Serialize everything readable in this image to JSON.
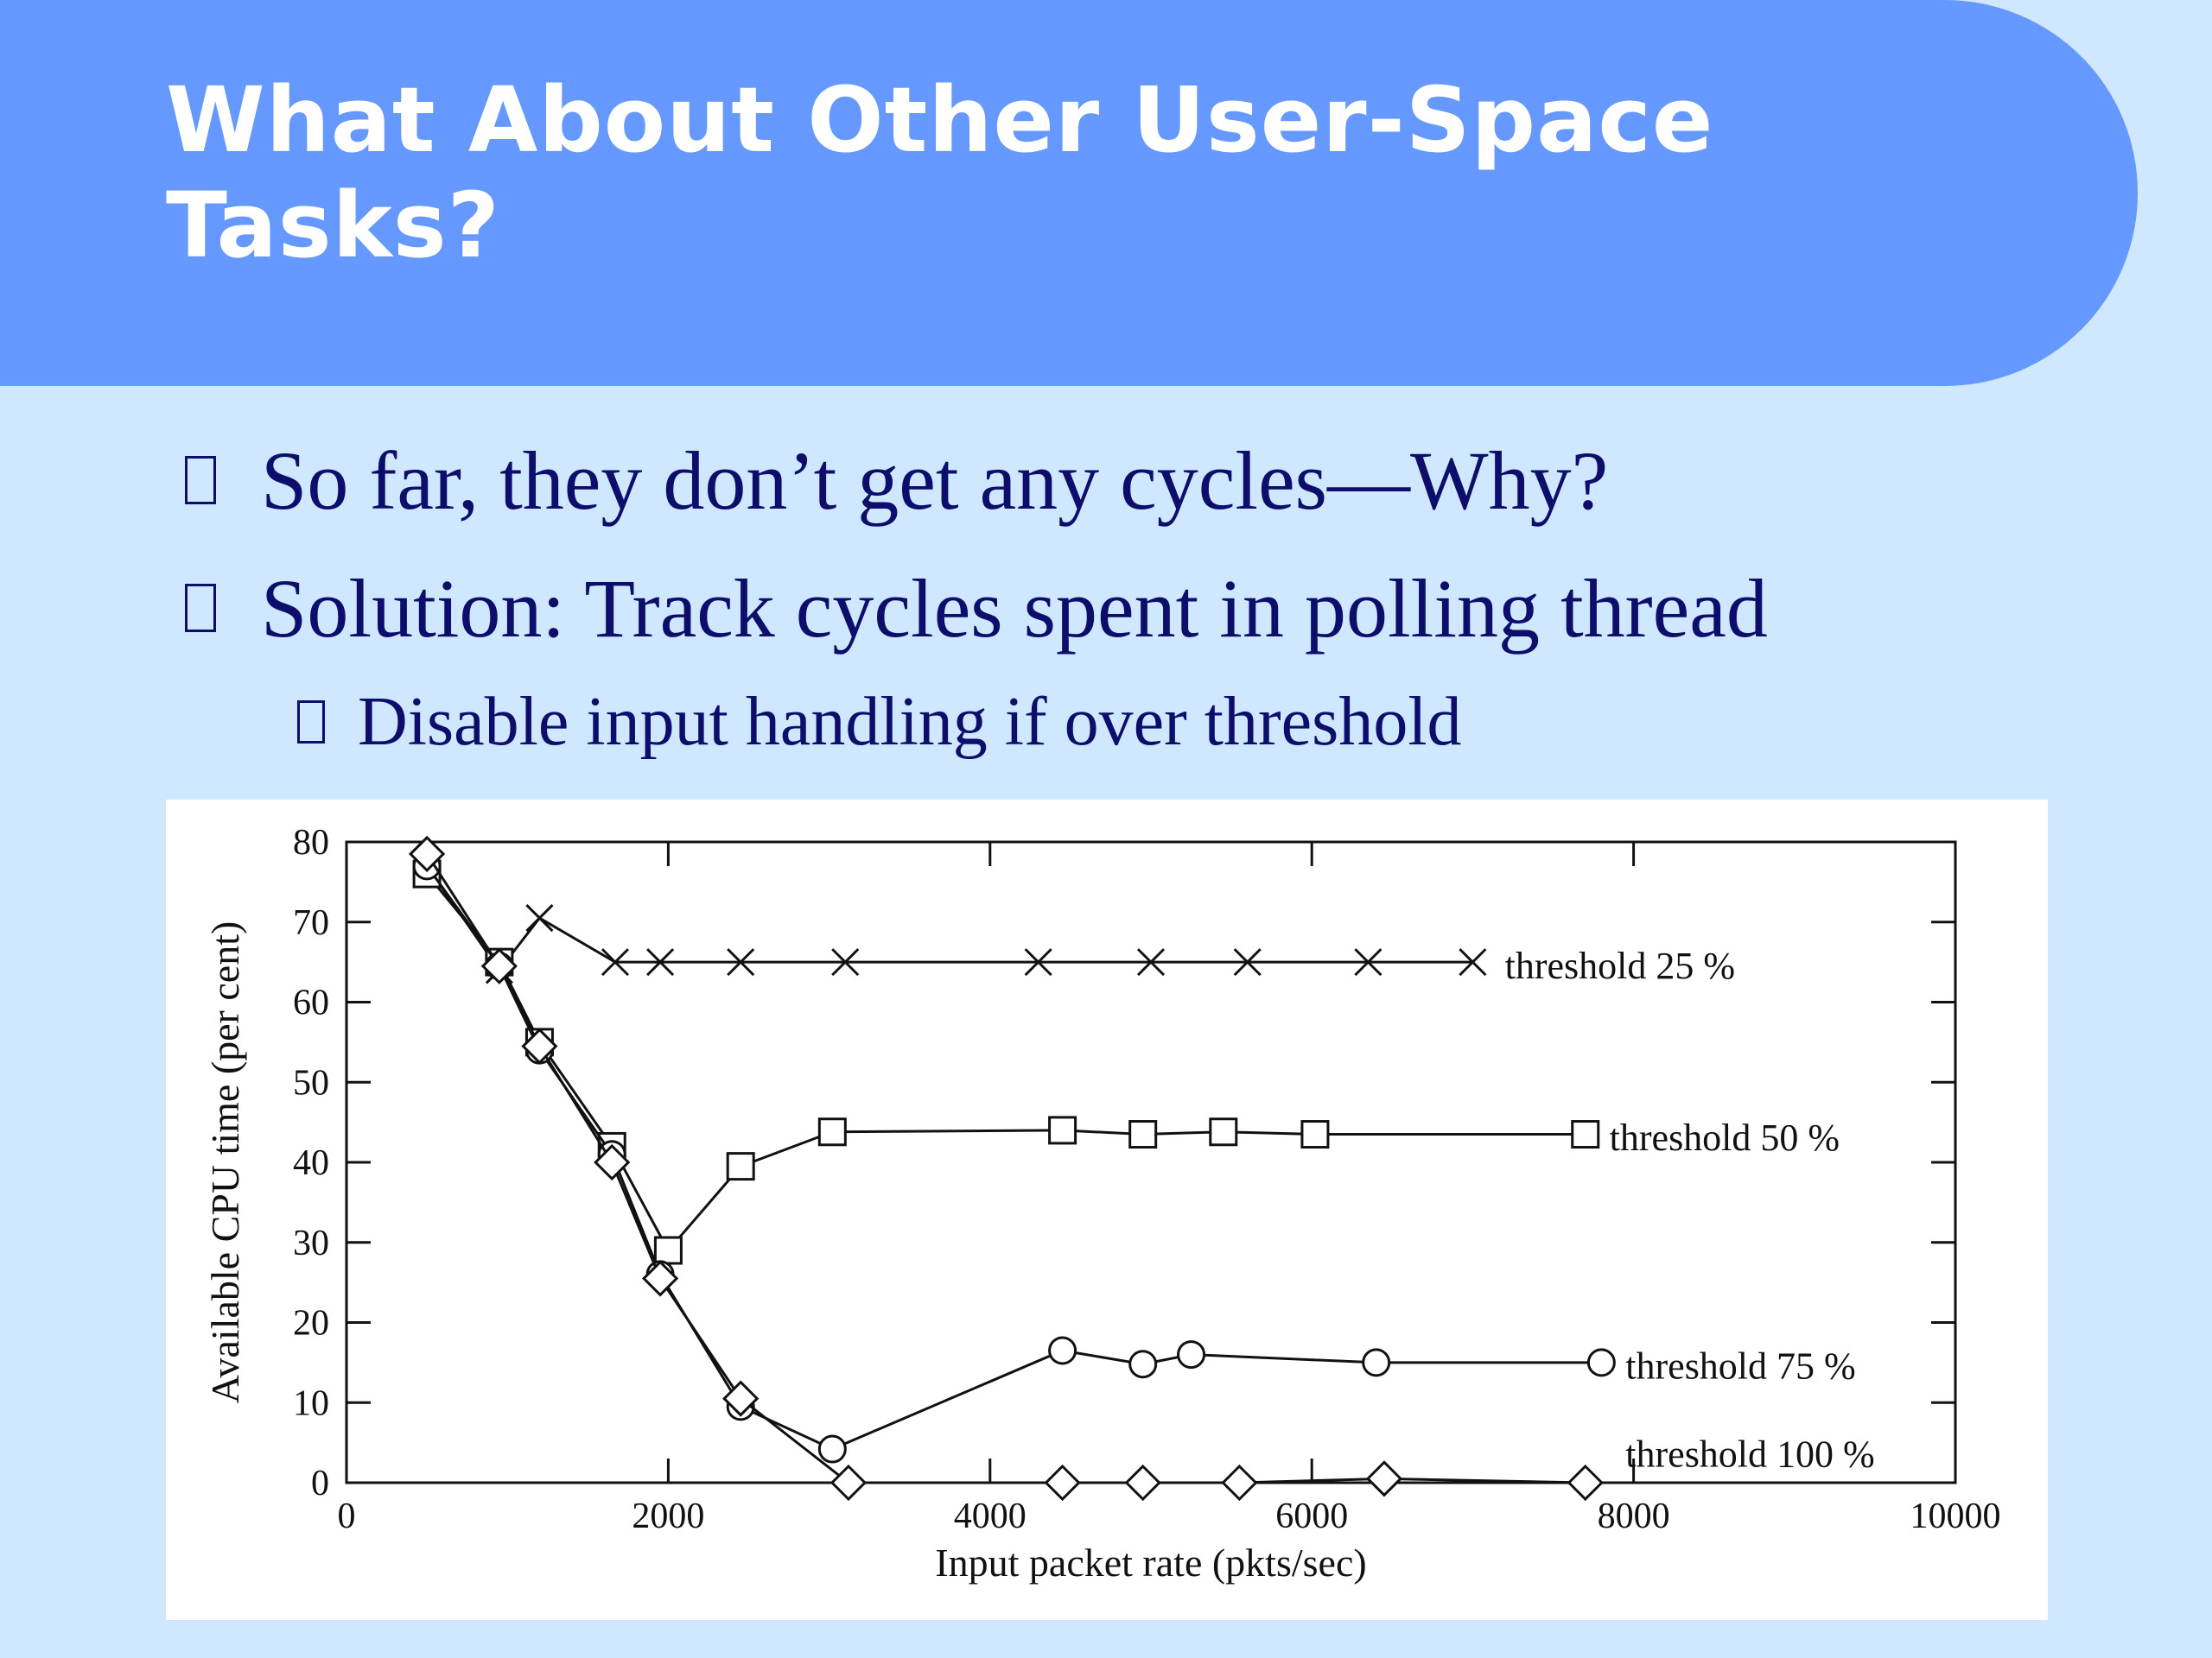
{
  "slide": {
    "title_line1": "What About Other User-Space",
    "title_line2": "Tasks?",
    "bullets": [
      {
        "text": "So far, they don’t get any cycles—Why?",
        "level": 1
      },
      {
        "text": "Solution: Track cycles spent in polling thread",
        "level": 1
      },
      {
        "text": "Disable input handling if over threshold",
        "level": 2
      }
    ],
    "colors": {
      "title_band": "#6699ff",
      "background": "#cfe8ff",
      "title_text": "#ffffff",
      "bullet_text": "#0d0d6b"
    }
  },
  "chart_data": {
    "type": "line",
    "title": "",
    "xlabel": "Input packet rate (pkts/sec)",
    "ylabel": "Available CPU time (per cent)",
    "xlim": [
      0,
      10000
    ],
    "ylim": [
      0,
      80
    ],
    "x_ticks": [
      0,
      2000,
      4000,
      6000,
      8000,
      10000
    ],
    "y_ticks": [
      0,
      10,
      20,
      30,
      40,
      50,
      60,
      70,
      80
    ],
    "grid": false,
    "legend": "inline labels at right end of each series",
    "series": [
      {
        "name": "threshold 25 %",
        "marker": "x",
        "points": [
          [
            500,
            77
          ],
          [
            950,
            64
          ],
          [
            1200,
            70.5
          ],
          [
            1670,
            65
          ],
          [
            1950,
            65
          ],
          [
            2450,
            65
          ],
          [
            3100,
            65
          ],
          [
            4300,
            65
          ],
          [
            5000,
            65
          ],
          [
            5600,
            65
          ],
          [
            6350,
            65
          ],
          [
            7000,
            65
          ]
        ]
      },
      {
        "name": "threshold 50 %",
        "marker": "square",
        "points": [
          [
            500,
            76
          ],
          [
            950,
            65
          ],
          [
            1200,
            55
          ],
          [
            1650,
            42
          ],
          [
            2000,
            29
          ],
          [
            2450,
            39.5
          ],
          [
            3020,
            43.8
          ],
          [
            4450,
            44
          ],
          [
            4950,
            43.5
          ],
          [
            5450,
            43.8
          ],
          [
            6020,
            43.5
          ],
          [
            7700,
            43.5
          ]
        ]
      },
      {
        "name": "threshold 75 %",
        "marker": "circle",
        "points": [
          [
            500,
            77
          ],
          [
            950,
            64.5
          ],
          [
            1200,
            54
          ],
          [
            1650,
            41
          ],
          [
            1950,
            26
          ],
          [
            2450,
            9.5
          ],
          [
            3020,
            4.2
          ],
          [
            4450,
            16.5
          ],
          [
            4950,
            14.8
          ],
          [
            5250,
            16
          ],
          [
            6400,
            15
          ],
          [
            7800,
            15
          ]
        ]
      },
      {
        "name": "threshold 100 %",
        "marker": "diamond",
        "points": [
          [
            500,
            78.5
          ],
          [
            950,
            64.5
          ],
          [
            1200,
            54.5
          ],
          [
            1650,
            40
          ],
          [
            1950,
            25.5
          ],
          [
            2450,
            10.5
          ],
          [
            3120,
            0
          ],
          [
            4450,
            0
          ],
          [
            4950,
            0
          ],
          [
            5550,
            0
          ],
          [
            6450,
            0.5
          ],
          [
            7700,
            0
          ]
        ]
      }
    ],
    "series_labels": [
      {
        "text": "threshold  25 %",
        "anchor": [
          7200,
          64.5
        ]
      },
      {
        "text": "threshold  50 %",
        "anchor": [
          7850,
          43
        ]
      },
      {
        "text": "threshold  75 %",
        "anchor": [
          7950,
          14.5
        ]
      },
      {
        "text": "threshold  100 %",
        "anchor": [
          7950,
          3.5
        ]
      }
    ]
  }
}
